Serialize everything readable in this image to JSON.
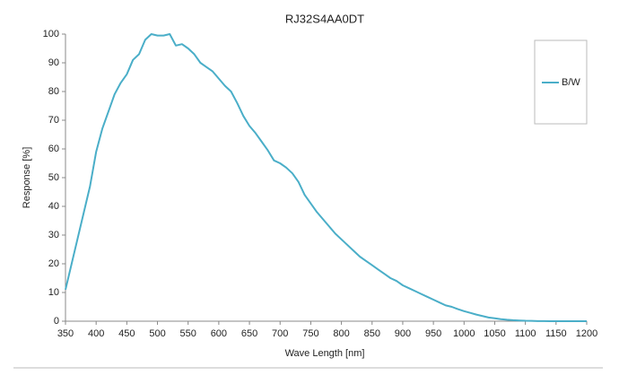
{
  "chart_data": {
    "type": "line",
    "title": "RJ32S4AA0DT",
    "x_label": "Wave Length [nm]",
    "y_label": "Response [%]",
    "x": [
      350,
      360,
      370,
      380,
      390,
      400,
      410,
      420,
      430,
      440,
      450,
      460,
      470,
      480,
      490,
      500,
      510,
      520,
      530,
      540,
      550,
      560,
      570,
      580,
      590,
      600,
      610,
      620,
      630,
      640,
      650,
      660,
      670,
      680,
      690,
      700,
      710,
      720,
      730,
      740,
      750,
      760,
      770,
      780,
      790,
      800,
      810,
      820,
      830,
      840,
      850,
      860,
      870,
      880,
      890,
      900,
      910,
      920,
      930,
      940,
      950,
      960,
      970,
      980,
      990,
      1000,
      1010,
      1020,
      1030,
      1040,
      1050,
      1060,
      1070,
      1080,
      1090,
      1100,
      1110,
      1120,
      1130,
      1140,
      1150,
      1200
    ],
    "series": [
      {
        "name": "B/W",
        "color": "#4aaec8",
        "values": [
          11,
          20,
          29,
          38,
          47,
          59,
          67,
          73,
          79,
          83,
          86,
          91,
          93,
          98,
          100,
          99.5,
          99.5,
          100,
          96,
          96.5,
          95,
          93,
          90,
          88.5,
          87,
          84.5,
          82,
          80,
          76,
          71.5,
          68,
          65.5,
          62.5,
          59.5,
          56,
          55,
          53.5,
          51.5,
          48.5,
          44,
          41,
          38,
          35.5,
          33,
          30.5,
          28.5,
          26.5,
          24.5,
          22.5,
          21,
          19.5,
          18,
          16.5,
          15,
          14,
          12.5,
          11.5,
          10.5,
          9.5,
          8.5,
          7.5,
          6.5,
          5.5,
          5,
          4.2,
          3.5,
          2.9,
          2.3,
          1.8,
          1.3,
          1,
          0.7,
          0.5,
          0.35,
          0.25,
          0.15,
          0.1,
          0.05,
          0.03,
          0.02,
          0,
          0
        ]
      }
    ],
    "xlim": [
      350,
      1200
    ],
    "ylim": [
      0,
      100
    ],
    "xticks": [
      350,
      400,
      450,
      500,
      550,
      600,
      650,
      700,
      750,
      800,
      850,
      900,
      950,
      1000,
      1050,
      1100,
      1150,
      1200
    ],
    "yticks": [
      0,
      10,
      20,
      30,
      40,
      50,
      60,
      70,
      80,
      90,
      100
    ],
    "grid": false,
    "legend": "upper right"
  }
}
